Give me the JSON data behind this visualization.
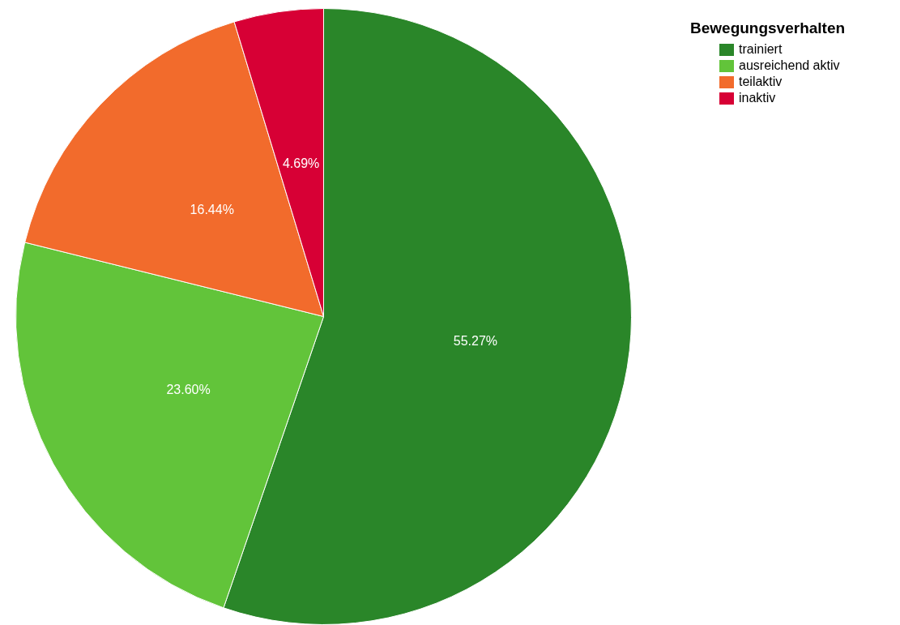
{
  "chart_data": {
    "type": "pie",
    "legend_title": "Bewegungsverhalten",
    "categories": [
      "trainiert",
      "ausreichend aktiv",
      "teilaktiv",
      "inaktiv"
    ],
    "values": [
      55.27,
      23.6,
      16.44,
      4.69
    ],
    "colors": [
      "#2a8629",
      "#62c43a",
      "#f26b2c",
      "#d70035"
    ],
    "value_labels": [
      "55.27%",
      "23.60%",
      "16.44%",
      "4.69%"
    ],
    "legend": "top right"
  }
}
